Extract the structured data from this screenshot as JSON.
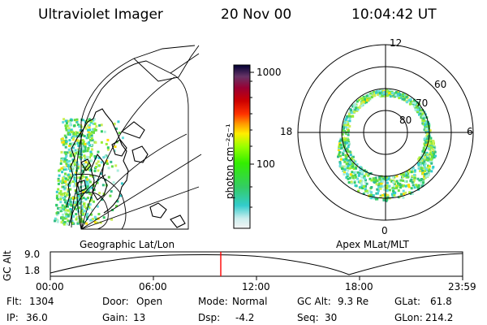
{
  "header": {
    "instrument": "Ultraviolet Imager",
    "date": "20 Nov 00",
    "time": "10:04:42 UT"
  },
  "left_panel": {
    "label": "Geographic Lat/Lon"
  },
  "right_panel": {
    "label": "Apex MLat/MLT",
    "mlt_labels": [
      "12",
      "18",
      "6",
      "0"
    ],
    "lat_labels": [
      "60",
      "70",
      "80"
    ]
  },
  "colorbar": {
    "unit_label": "photon cm⁻²s⁻¹",
    "tick_labels": [
      "1000",
      "100"
    ],
    "colors": [
      "#000033",
      "#330066",
      "#660033",
      "#990000",
      "#cc0000",
      "#ff3300",
      "#ff9900",
      "#ffcc00",
      "#ccff00",
      "#66ff00",
      "#00ee00",
      "#33cc33",
      "#00cccc",
      "#66dddd",
      "#cccccc",
      "#eeeeee"
    ]
  },
  "altitude_plot": {
    "ylabel": "GC Alt",
    "y_ticks": [
      "9.0",
      "1.8"
    ],
    "x_ticks": [
      "00:00",
      "06:00",
      "12:00",
      "18:00",
      "23:59"
    ],
    "current_time_color": "#ff0000"
  },
  "footer": {
    "flt_label": "Flt:",
    "flt_value": "1304",
    "ip_label": "IP:",
    "ip_value": "36.0",
    "door_label": "Door:",
    "door_value": "Open",
    "gain_label": "Gain:",
    "gain_value": "13",
    "mode_label": "Mode:",
    "mode_value": "Normal",
    "dsp_label": "Dsp:",
    "dsp_value": "-4.2",
    "gcalt_label": "GC Alt:",
    "gcalt_value": "9.3 Re",
    "seq_label": "Seq:",
    "seq_value": "30",
    "glat_label": "GLat:",
    "glat_value": "61.8",
    "glon_label": "GLon:",
    "glon_value": "214.2"
  }
}
